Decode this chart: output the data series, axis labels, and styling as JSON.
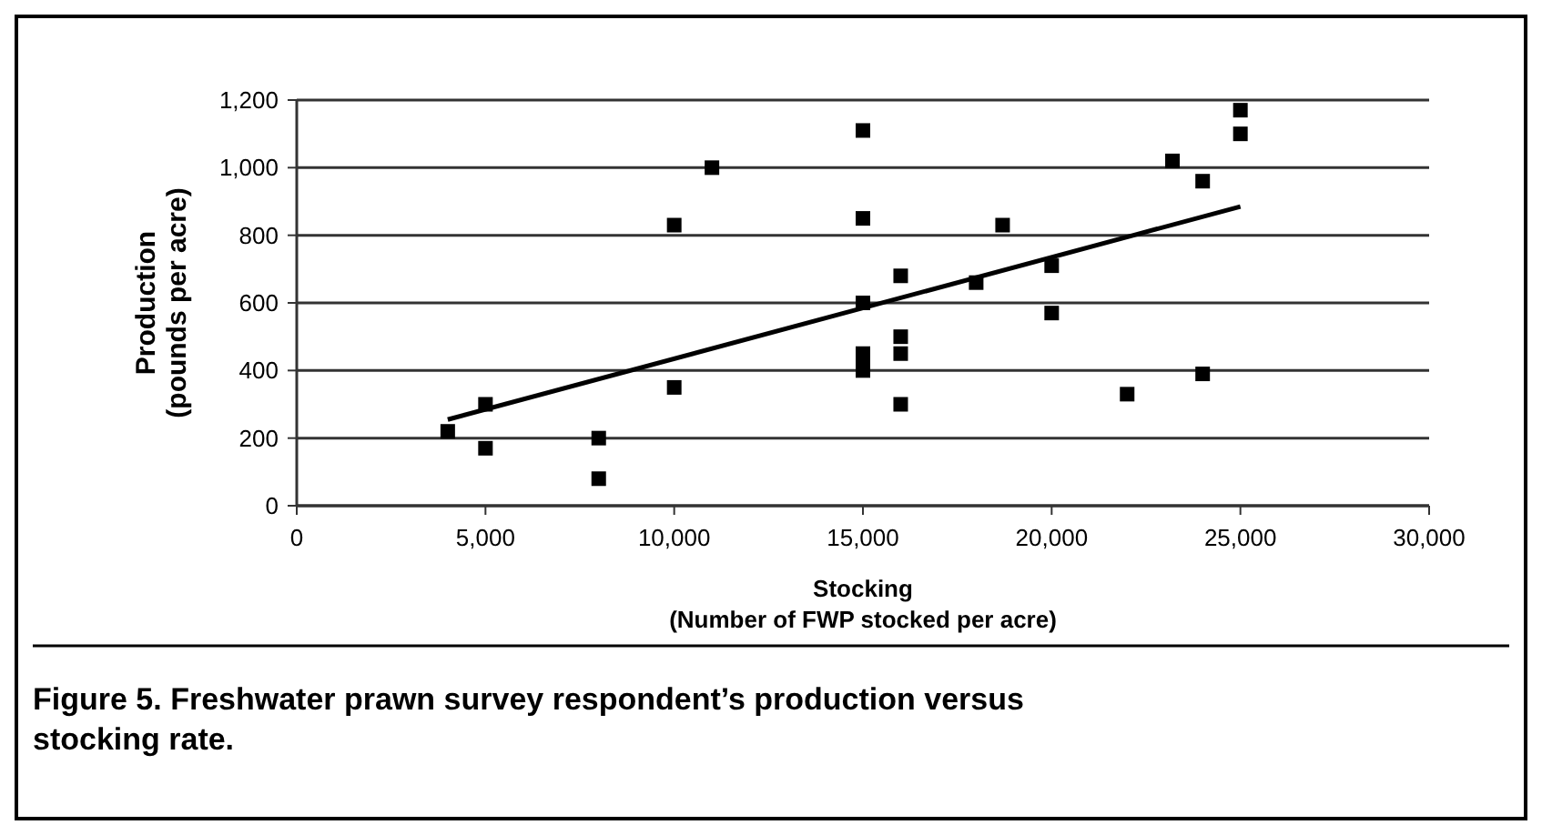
{
  "chart_data": {
    "type": "scatter",
    "title": "Figure 5. Freshwater prawn survey respondent’s production versus stocking rate.",
    "xlabel": "Stocking\n(Number of FWP stocked per acre)",
    "ylabel": "Production\n(pounds per acre)",
    "marker": "square",
    "grid": "y",
    "xlim": [
      0,
      30000
    ],
    "xticks": [
      {
        "value": 0,
        "label": "0"
      },
      {
        "value": 5000,
        "label": "5,000"
      },
      {
        "value": 10000,
        "label": "10,000"
      },
      {
        "value": 15000,
        "label": "15,000"
      },
      {
        "value": 20000,
        "label": "20,000"
      },
      {
        "value": 25000,
        "label": "25,000"
      },
      {
        "value": 30000,
        "label": "30,000"
      }
    ],
    "ylim": [
      0,
      1200
    ],
    "yticks": [
      {
        "value": 0,
        "label": "0"
      },
      {
        "value": 200,
        "label": "200"
      },
      {
        "value": 400,
        "label": "400"
      },
      {
        "value": 600,
        "label": "600"
      },
      {
        "value": 800,
        "label": "800"
      },
      {
        "value": 1000,
        "label": "1,000"
      },
      {
        "value": 1200,
        "label": "1,200"
      }
    ],
    "series": [
      {
        "color": "#000000",
        "x": [
          4000,
          5000,
          5000,
          8000,
          8000,
          10000,
          10000,
          11000,
          15000,
          15000,
          15000,
          15000,
          15000,
          15000,
          16000,
          16000,
          16000,
          16000,
          18000,
          18700,
          20000,
          20000,
          22000,
          23200,
          24000,
          24000,
          25000,
          25000
        ],
        "values": [
          220,
          300,
          170,
          200,
          80,
          830,
          350,
          1000,
          1110,
          850,
          600,
          450,
          430,
          400,
          680,
          500,
          450,
          300,
          660,
          830,
          710,
          570,
          330,
          1020,
          960,
          390,
          1170,
          1100
        ]
      },
      {
        "type": "line",
        "marker": "none",
        "color": "#000000",
        "x": [
          4000,
          25000
        ],
        "values": [
          255,
          885
        ]
      }
    ]
  }
}
